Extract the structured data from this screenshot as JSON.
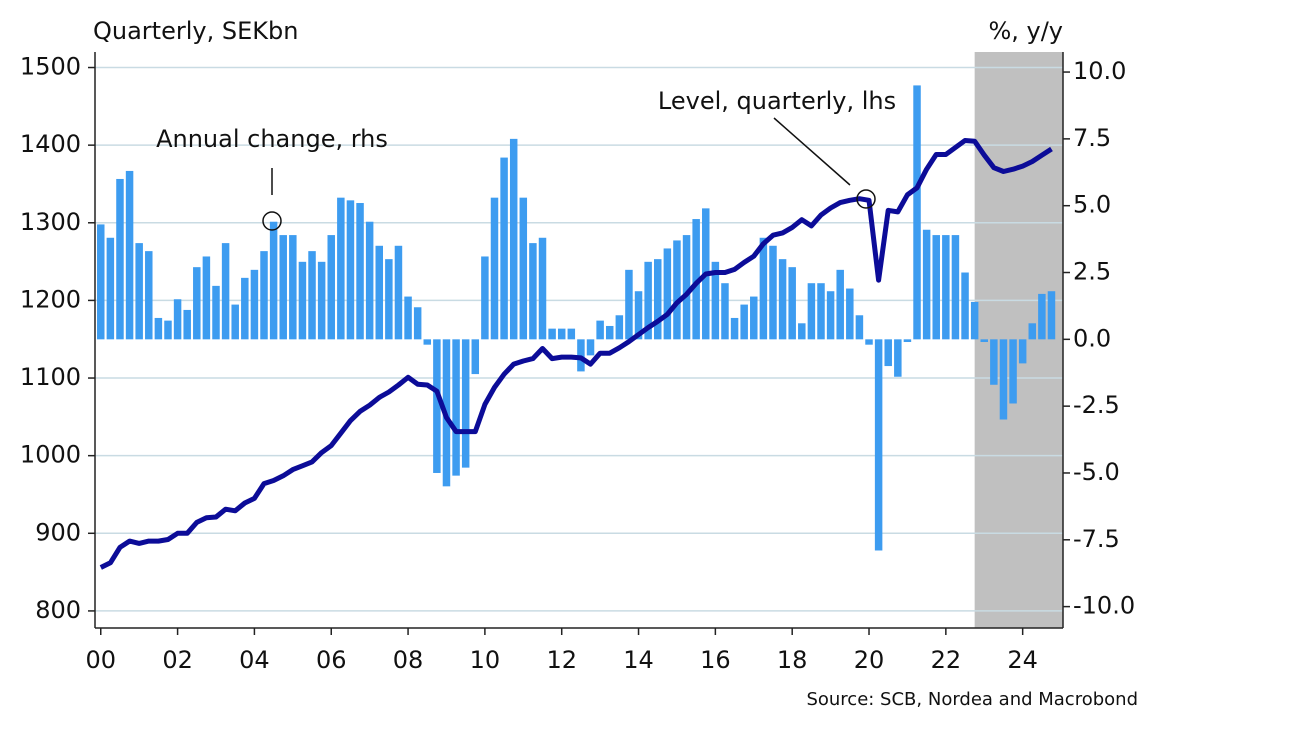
{
  "chart_data": {
    "type": "bar-line",
    "y_title": "Quarterly, SEKbn",
    "y2_title": "%, y/y",
    "source": "Source: SCB, Nordea and Macrobond",
    "xlim": [
      1999.85,
      2025.05
    ],
    "xticks": [
      {
        "value": 2000,
        "label": "00"
      },
      {
        "value": 2002,
        "label": "02"
      },
      {
        "value": 2004,
        "label": "04"
      },
      {
        "value": 2006,
        "label": "06"
      },
      {
        "value": 2008,
        "label": "08"
      },
      {
        "value": 2010,
        "label": "10"
      },
      {
        "value": 2012,
        "label": "12"
      },
      {
        "value": 2014,
        "label": "14"
      },
      {
        "value": 2016,
        "label": "16"
      },
      {
        "value": 2018,
        "label": "18"
      },
      {
        "value": 2020,
        "label": "20"
      },
      {
        "value": 2022,
        "label": "22"
      },
      {
        "value": 2024,
        "label": "24"
      }
    ],
    "ylim": [
      778,
      1520
    ],
    "yticks": [
      800,
      900,
      1000,
      1100,
      1200,
      1300,
      1400,
      1500
    ],
    "y2lim": [
      -10.8,
      10.75
    ],
    "y2ticks": [
      {
        "value": 10,
        "label": "10.0"
      },
      7.5,
      {
        "value": 5,
        "label": "5.0"
      },
      2.5,
      {
        "value": 0,
        "label": "0.0"
      },
      -2.5,
      {
        "value": -5,
        "label": "-5.0"
      },
      -7.5,
      {
        "value": -10,
        "label": "-10.0"
      }
    ],
    "grid": true,
    "shaded_from": 2022.75,
    "x": [
      2000,
      2000.25,
      2000.5,
      2000.75,
      2001,
      2001.25,
      2001.5,
      2001.75,
      2002,
      2002.25,
      2002.5,
      2002.75,
      2003,
      2003.25,
      2003.5,
      2003.75,
      2004,
      2004.25,
      2004.5,
      2004.75,
      2005,
      2005.25,
      2005.5,
      2005.75,
      2006,
      2006.25,
      2006.5,
      2006.75,
      2007,
      2007.25,
      2007.5,
      2007.75,
      2008,
      2008.25,
      2008.5,
      2008.75,
      2009,
      2009.25,
      2009.5,
      2009.75,
      2010,
      2010.25,
      2010.5,
      2010.75,
      2011,
      2011.25,
      2011.5,
      2011.75,
      2012,
      2012.25,
      2012.5,
      2012.75,
      2013,
      2013.25,
      2013.5,
      2013.75,
      2014,
      2014.25,
      2014.5,
      2014.75,
      2015,
      2015.25,
      2015.5,
      2015.75,
      2016,
      2016.25,
      2016.5,
      2016.75,
      2017,
      2017.25,
      2017.5,
      2017.75,
      2018,
      2018.25,
      2018.5,
      2018.75,
      2019,
      2019.25,
      2019.5,
      2019.75,
      2020,
      2020.25,
      2020.5,
      2020.75,
      2021,
      2021.25,
      2021.5,
      2021.75,
      2022,
      2022.25,
      2022.5,
      2022.75,
      2023,
      2023.25,
      2023.5,
      2023.75,
      2024,
      2024.25,
      2024.5,
      2024.75
    ],
    "series": [
      {
        "name": "Annual change, rhs",
        "kind": "bar",
        "axis": "y2",
        "color": "#3d9cf0",
        "values": [
          4.3,
          3.8,
          6.0,
          6.3,
          3.6,
          3.3,
          0.8,
          0.7,
          1.5,
          1.1,
          2.7,
          3.1,
          2.0,
          3.6,
          1.3,
          2.3,
          2.6,
          3.3,
          4.4,
          3.9,
          3.9,
          2.9,
          3.3,
          2.9,
          3.9,
          5.3,
          5.2,
          5.1,
          4.4,
          3.5,
          3.0,
          3.5,
          1.6,
          1.2,
          -0.2,
          -5.0,
          -5.5,
          -5.1,
          -4.8,
          -1.3,
          3.1,
          5.3,
          6.8,
          7.5,
          5.3,
          3.6,
          3.8,
          0.4,
          0.4,
          0.4,
          -1.2,
          -0.6,
          0.7,
          0.5,
          0.9,
          2.6,
          1.8,
          2.9,
          3.0,
          3.4,
          3.7,
          3.9,
          4.5,
          4.9,
          2.9,
          2.1,
          0.8,
          1.3,
          1.6,
          3.8,
          3.5,
          3.0,
          2.7,
          0.6,
          2.1,
          2.1,
          1.8,
          2.6,
          1.9,
          0.9,
          -0.2,
          -7.9,
          -1.0,
          -1.4,
          -0.1,
          9.5,
          4.1,
          3.9,
          3.9,
          3.9,
          2.5,
          1.4,
          -0.1,
          -1.7,
          -3.0,
          -2.4,
          -0.9,
          0.6,
          1.7,
          1.8
        ]
      },
      {
        "name": "Level, quarterly, lhs",
        "kind": "line",
        "color": "#0c0c98",
        "values": [
          856,
          862,
          882,
          890,
          887,
          890,
          890,
          892,
          900,
          900,
          914,
          920,
          921,
          931,
          929,
          939,
          945,
          964,
          968,
          974,
          982,
          987,
          992,
          1004,
          1013,
          1029,
          1045,
          1057,
          1065,
          1075,
          1082,
          1091,
          1101,
          1092,
          1091,
          1083,
          1049,
          1031,
          1031,
          1031,
          1066,
          1088,
          1105,
          1118,
          1122,
          1125,
          1138,
          1125,
          1127,
          1127,
          1126,
          1118,
          1132,
          1132,
          1139,
          1147,
          1156,
          1165,
          1173,
          1182,
          1197,
          1208,
          1222,
          1234,
          1236,
          1236,
          1240,
          1249,
          1257,
          1273,
          1284,
          1287,
          1294,
          1304,
          1296,
          1310,
          1319,
          1326,
          1329,
          1331,
          1329,
          1226,
          1316,
          1314,
          1336,
          1345,
          1369,
          1388,
          1388,
          1397,
          1406,
          1405,
          1387,
          1371,
          1366,
          1369,
          1373,
          1379,
          1387,
          1395
        ]
      }
    ]
  }
}
